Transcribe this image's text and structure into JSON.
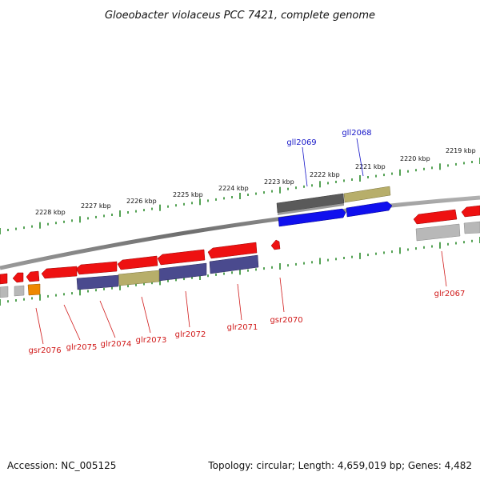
{
  "title": "Gloeobacter violaceus PCC 7421, complete genome",
  "footer": {
    "accession": "Accession: NC_005125",
    "summary": "Topology: circular; Length: 4,659,019 bp; Genes: 4,482"
  },
  "colors": {
    "backbone": "#7a7a7a",
    "tick_major": "#2a8a2a",
    "tick_minor": "#2a8a2a",
    "label_forward": "#1515c8",
    "label_reverse": "#d01818",
    "gene_red": "#ee1111",
    "gene_blue": "#1111ee",
    "gene_gray": "#666666",
    "gene_light_gray": "#b8b8b8",
    "gene_khaki": "#b8b06a",
    "gene_slate": "#4a4a8e",
    "gene_orange": "#ee8800"
  },
  "scale_ticks": [
    {
      "label": "2228 kbp"
    },
    {
      "label": "2227 kbp"
    },
    {
      "label": "2226 kbp"
    },
    {
      "label": "2225 kbp"
    },
    {
      "label": "2224 kbp"
    },
    {
      "label": "2223 kbp"
    },
    {
      "label": "2222 kbp"
    },
    {
      "label": "2221 kbp"
    },
    {
      "label": "2220 kbp"
    },
    {
      "label": "2219 kbp"
    }
  ],
  "forward_labels": [
    {
      "name": "gll2069"
    },
    {
      "name": "gll2068"
    }
  ],
  "reverse_labels": [
    {
      "name": "gsr2076"
    },
    {
      "name": "glr2075"
    },
    {
      "name": "glr2074"
    },
    {
      "name": "glr2073"
    },
    {
      "name": "glr2072"
    },
    {
      "name": "glr2071"
    },
    {
      "name": "gsr2070"
    },
    {
      "name": "glr2067"
    }
  ]
}
